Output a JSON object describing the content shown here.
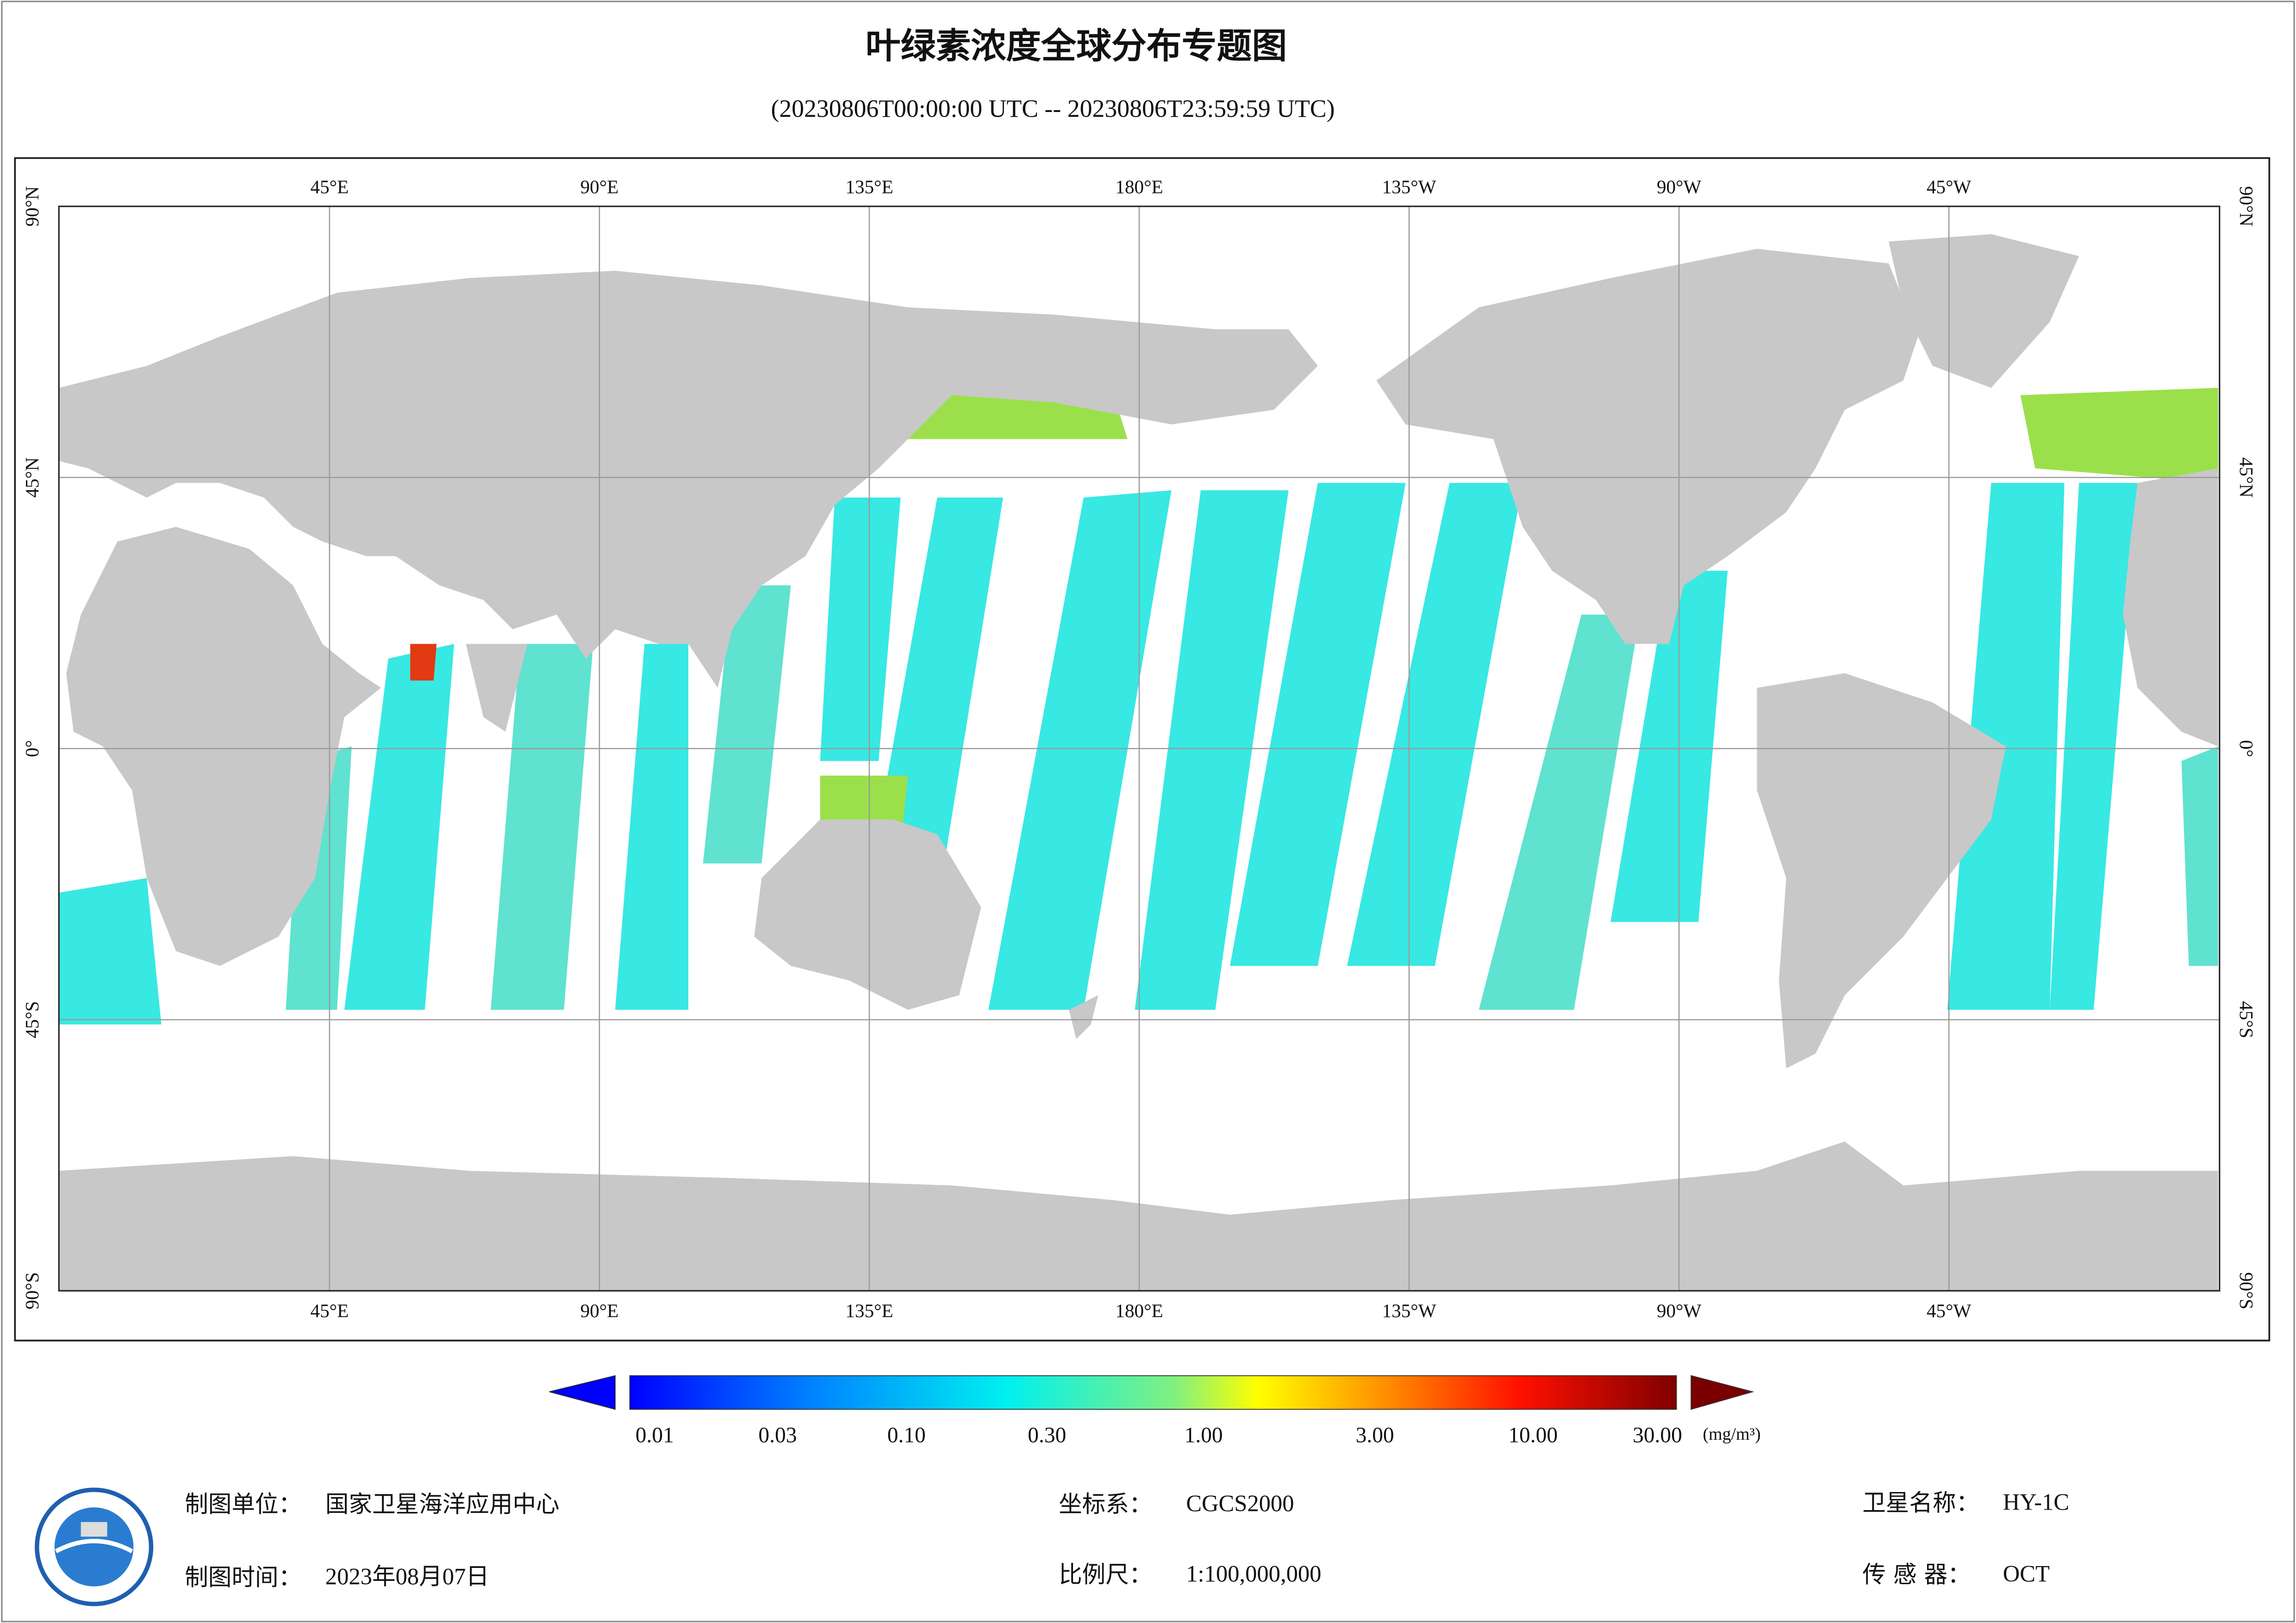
{
  "header": {
    "title": "叶绿素浓度全球分布专题图",
    "subtitle": "(20230806T00:00:00 UTC -- 20230806T23:59:59 UTC)"
  },
  "map": {
    "lon_labels": [
      "45°E",
      "90°E",
      "135°E",
      "180°E",
      "135°W",
      "90°W",
      "45°W"
    ],
    "lat_labels": [
      "90°N",
      "45°N",
      "0°",
      "45°S",
      "90°S"
    ]
  },
  "colorbar": {
    "labels": [
      "0.01",
      "0.03",
      "0.10",
      "0.30",
      "1.00",
      "3.00",
      "10.00",
      "30.00"
    ],
    "unit": "(mg/m³)"
  },
  "footer": {
    "agency_label": "制图单位：",
    "agency": "国家卫星海洋应用中心",
    "date_label": "制图时间：",
    "date": "2023年08月07日",
    "crs_label": "坐标系：",
    "crs": "CGCS2000",
    "scale_label": "比例尺：",
    "scale": "1:100,000,000",
    "satellite_label": "卫星名称：",
    "satellite": "HY-1C",
    "sensor_label": "传 感 器：",
    "sensor": "OCT"
  }
}
